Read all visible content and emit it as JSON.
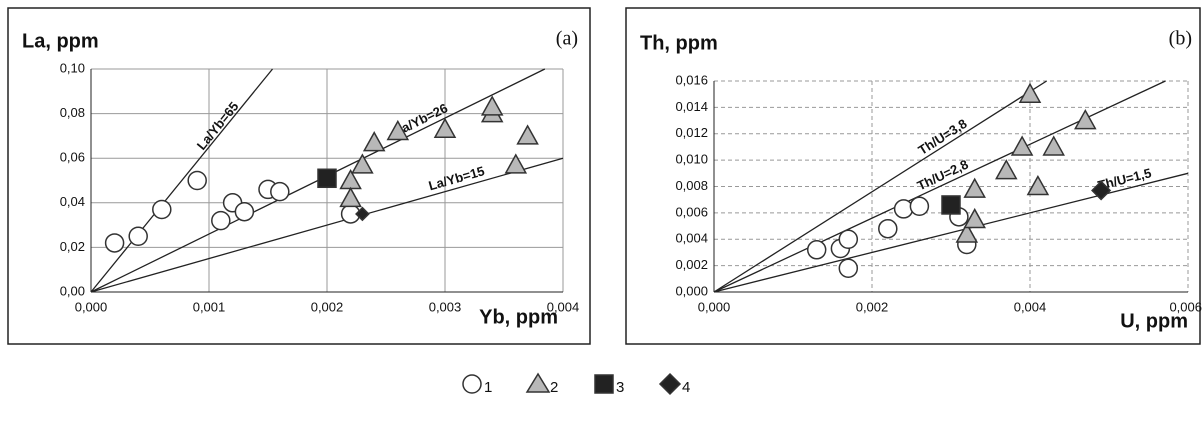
{
  "chart_data": [
    {
      "type": "scatter",
      "panel": "(a)",
      "y_title": "La, ppm",
      "x_title": "Yb, ppm",
      "xlim": [
        0,
        0.004
      ],
      "ylim": [
        0,
        0.1
      ],
      "xticks": [
        {
          "value": 0,
          "label": "0,000"
        },
        {
          "value": 0.001,
          "label": "0,001"
        },
        {
          "value": 0.002,
          "label": "0,002"
        },
        {
          "value": 0.003,
          "label": "0,003"
        },
        {
          "value": 0.004,
          "label": "0,004"
        }
      ],
      "yticks": [
        {
          "value": 0,
          "label": "0,00"
        },
        {
          "value": 0.02,
          "label": "0,02"
        },
        {
          "value": 0.04,
          "label": "0,04"
        },
        {
          "value": 0.06,
          "label": "0,06"
        },
        {
          "value": 0.08,
          "label": "0,08"
        },
        {
          "value": 0.1,
          "label": "0,10"
        }
      ],
      "grid": "solid",
      "lines": [
        {
          "label": "La/Yb=65",
          "slope": 65
        },
        {
          "label": "La/Yb=26",
          "slope": 26
        },
        {
          "label": "La/Yb=15",
          "slope": 15
        }
      ],
      "series": [
        {
          "name": "1",
          "marker": "circle",
          "color": "#ffffff",
          "x": [
            0.0002,
            0.0004,
            0.0006,
            0.0009,
            0.0011,
            0.0012,
            0.0013,
            0.0015,
            0.0016,
            0.0022
          ],
          "values": [
            0.022,
            0.025,
            0.037,
            0.05,
            0.032,
            0.04,
            0.036,
            0.046,
            0.045,
            0.035
          ]
        },
        {
          "name": "2",
          "marker": "triangle",
          "color": "#b8b8b8",
          "x": [
            0.0022,
            0.0022,
            0.0023,
            0.0024,
            0.0026,
            0.003,
            0.0034,
            0.0034,
            0.0036,
            0.0037
          ],
          "values": [
            0.05,
            0.042,
            0.057,
            0.067,
            0.072,
            0.073,
            0.08,
            0.083,
            0.057,
            0.07
          ]
        },
        {
          "name": "3",
          "marker": "square",
          "color": "#222222",
          "x": [
            0.002
          ],
          "values": [
            0.051
          ]
        },
        {
          "name": "4",
          "marker": "diamond",
          "color": "#222222",
          "x": [
            0.0023
          ],
          "values": [
            0.035
          ]
        }
      ]
    },
    {
      "type": "scatter",
      "panel": "(b)",
      "y_title": "Th, ppm",
      "x_title": "U, ppm",
      "xlim": [
        0,
        0.006
      ],
      "ylim": [
        0,
        0.016
      ],
      "xticks": [
        {
          "value": 0,
          "label": "0,000"
        },
        {
          "value": 0.002,
          "label": "0,002"
        },
        {
          "value": 0.004,
          "label": "0,004"
        },
        {
          "value": 0.006,
          "label": "0,006"
        }
      ],
      "yticks": [
        {
          "value": 0,
          "label": "0,000"
        },
        {
          "value": 0.002,
          "label": "0,002"
        },
        {
          "value": 0.004,
          "label": "0,004"
        },
        {
          "value": 0.006,
          "label": "0,006"
        },
        {
          "value": 0.008,
          "label": "0,008"
        },
        {
          "value": 0.01,
          "label": "0,010"
        },
        {
          "value": 0.012,
          "label": "0,012"
        },
        {
          "value": 0.014,
          "label": "0,014"
        },
        {
          "value": 0.016,
          "label": "0,016"
        }
      ],
      "grid": "dashed",
      "lines": [
        {
          "label": "Th/U=3,8",
          "slope": 3.8
        },
        {
          "label": "Th/U=2,8",
          "slope": 2.8
        },
        {
          "label": "Th/U=1,5",
          "slope": 1.5
        }
      ],
      "series": [
        {
          "name": "1",
          "marker": "circle",
          "color": "#ffffff",
          "x": [
            0.0013,
            0.0016,
            0.0017,
            0.0017,
            0.0022,
            0.0024,
            0.0026,
            0.0031,
            0.0032
          ],
          "values": [
            0.0032,
            0.0033,
            0.004,
            0.0018,
            0.0048,
            0.0063,
            0.0065,
            0.0057,
            0.0036
          ]
        },
        {
          "name": "2",
          "marker": "triangle",
          "color": "#b8b8b8",
          "x": [
            0.0032,
            0.0033,
            0.0033,
            0.0037,
            0.0039,
            0.004,
            0.0041,
            0.0043,
            0.0047
          ],
          "values": [
            0.0044,
            0.0055,
            0.0078,
            0.0092,
            0.011,
            0.015,
            0.008,
            0.011,
            0.013
          ]
        },
        {
          "name": "3",
          "marker": "square",
          "color": "#222222",
          "x": [
            0.003
          ],
          "values": [
            0.0066
          ]
        },
        {
          "name": "4",
          "marker": "diamond",
          "color": "#222222",
          "x": [
            0.0049
          ],
          "values": [
            0.0077
          ]
        }
      ]
    }
  ]
}
